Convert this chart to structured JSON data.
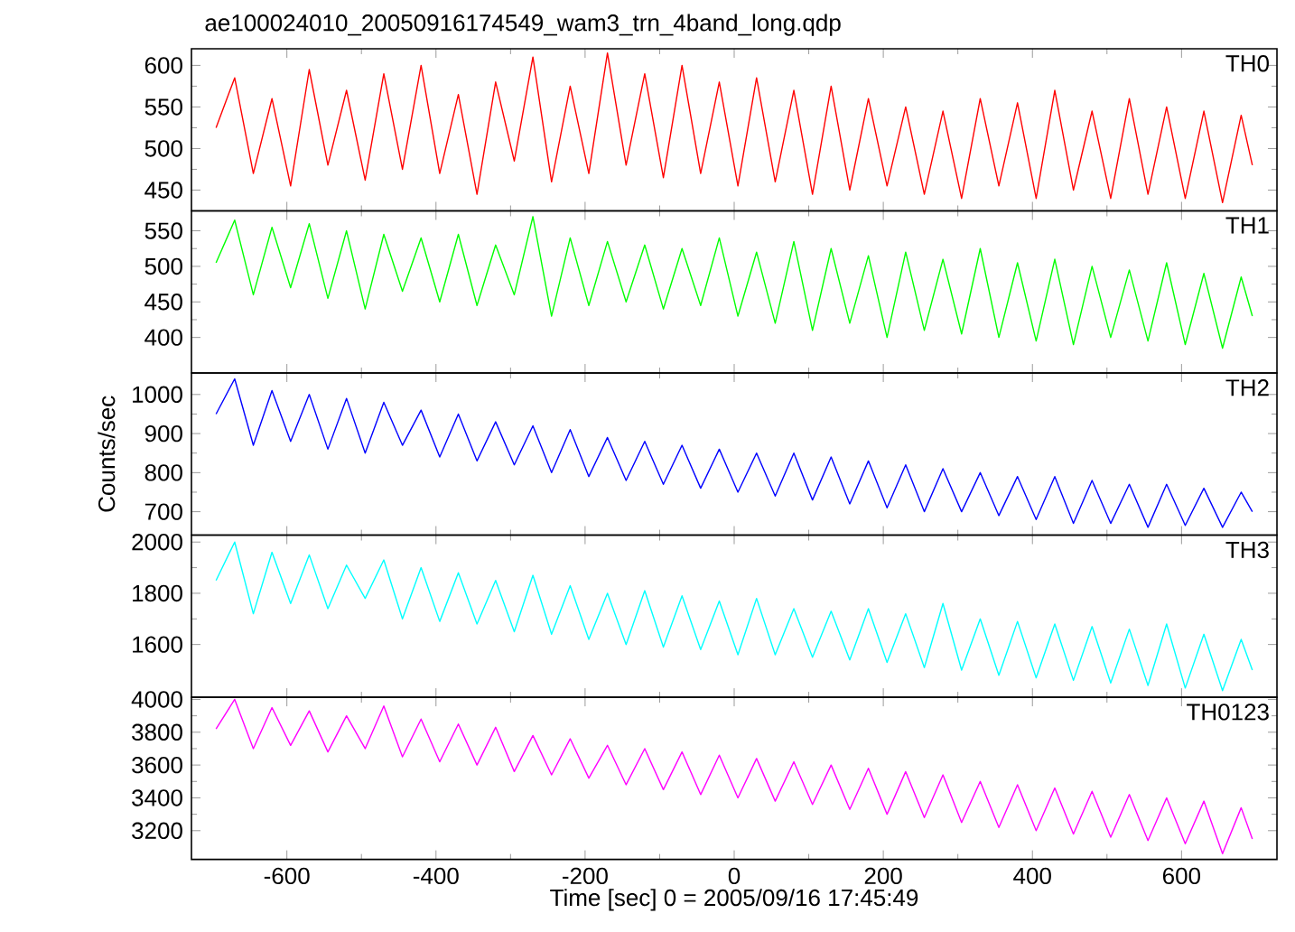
{
  "chart_data": [
    {
      "type": "line",
      "title": "ae100024010_20050916174549_wam3_trn_4band_long.qdp",
      "tick_labels": "y",
      "xlim": [
        -728,
        728
      ],
      "ylim": [
        425,
        620
      ],
      "yticks": [
        450,
        500,
        550,
        600
      ],
      "xticks": [
        -600,
        -400,
        -200,
        0,
        200,
        400,
        600
      ],
      "x": [
        -695,
        -670,
        -645,
        -620,
        -595,
        -570,
        -545,
        -520,
        -495,
        -470,
        -445,
        -420,
        -395,
        -370,
        -345,
        -320,
        -295,
        -270,
        -245,
        -220,
        -195,
        -170,
        -145,
        -120,
        -95,
        -70,
        -45,
        -20,
        5,
        30,
        55,
        80,
        105,
        130,
        155,
        180,
        205,
        230,
        255,
        280,
        305,
        330,
        355,
        380,
        405,
        430,
        455,
        480,
        505,
        530,
        555,
        580,
        605,
        630,
        655,
        680,
        695
      ],
      "series": [
        {
          "name": "TH0",
          "color": "#ff0000",
          "values": [
            525,
            585,
            470,
            560,
            455,
            595,
            480,
            570,
            462,
            590,
            475,
            600,
            470,
            565,
            445,
            580,
            485,
            610,
            460,
            575,
            470,
            615,
            480,
            590,
            465,
            600,
            470,
            580,
            455,
            585,
            460,
            570,
            445,
            575,
            450,
            560,
            455,
            550,
            445,
            545,
            440,
            560,
            455,
            555,
            440,
            570,
            450,
            545,
            440,
            560,
            445,
            550,
            440,
            545,
            435,
            540,
            480
          ]
        }
      ]
    },
    {
      "type": "line",
      "tick_labels": "y",
      "xlim": [
        -728,
        728
      ],
      "ylim": [
        350,
        578
      ],
      "yticks": [
        400,
        450,
        500,
        550
      ],
      "xticks": [
        -600,
        -400,
        -200,
        0,
        200,
        400,
        600
      ],
      "x": [
        -695,
        -670,
        -645,
        -620,
        -595,
        -570,
        -545,
        -520,
        -495,
        -470,
        -445,
        -420,
        -395,
        -370,
        -345,
        -320,
        -295,
        -270,
        -245,
        -220,
        -195,
        -170,
        -145,
        -120,
        -95,
        -70,
        -45,
        -20,
        5,
        30,
        55,
        80,
        105,
        130,
        155,
        180,
        205,
        230,
        255,
        280,
        305,
        330,
        355,
        380,
        405,
        430,
        455,
        480,
        505,
        530,
        555,
        580,
        605,
        630,
        655,
        680,
        695
      ],
      "series": [
        {
          "name": "TH1",
          "color": "#00ff00",
          "values": [
            505,
            565,
            460,
            555,
            470,
            560,
            455,
            550,
            440,
            545,
            465,
            540,
            450,
            545,
            445,
            530,
            460,
            570,
            430,
            540,
            445,
            535,
            450,
            530,
            440,
            525,
            445,
            540,
            430,
            520,
            420,
            535,
            410,
            525,
            420,
            515,
            400,
            520,
            410,
            510,
            405,
            525,
            400,
            505,
            395,
            510,
            390,
            500,
            400,
            495,
            395,
            505,
            390,
            490,
            385,
            485,
            430
          ]
        }
      ]
    },
    {
      "type": "line",
      "ylabel": "Counts/sec",
      "tick_labels": "y",
      "xlim": [
        -728,
        728
      ],
      "ylim": [
        640,
        1055
      ],
      "yticks": [
        700,
        800,
        900,
        1000
      ],
      "xticks": [
        -600,
        -400,
        -200,
        0,
        200,
        400,
        600
      ],
      "x": [
        -695,
        -670,
        -645,
        -620,
        -595,
        -570,
        -545,
        -520,
        -495,
        -470,
        -445,
        -420,
        -395,
        -370,
        -345,
        -320,
        -295,
        -270,
        -245,
        -220,
        -195,
        -170,
        -145,
        -120,
        -95,
        -70,
        -45,
        -20,
        5,
        30,
        55,
        80,
        105,
        130,
        155,
        180,
        205,
        230,
        255,
        280,
        305,
        330,
        355,
        380,
        405,
        430,
        455,
        480,
        505,
        530,
        555,
        580,
        605,
        630,
        655,
        680,
        695
      ],
      "series": [
        {
          "name": "TH2",
          "color": "#0000ff",
          "values": [
            950,
            1040,
            870,
            1010,
            880,
            1000,
            860,
            990,
            850,
            980,
            870,
            960,
            840,
            950,
            830,
            930,
            820,
            920,
            800,
            910,
            790,
            890,
            780,
            880,
            770,
            870,
            760,
            860,
            750,
            850,
            740,
            850,
            730,
            840,
            720,
            830,
            710,
            820,
            700,
            810,
            700,
            800,
            690,
            790,
            680,
            790,
            670,
            780,
            670,
            770,
            660,
            770,
            665,
            760,
            660,
            750,
            700
          ]
        }
      ]
    },
    {
      "type": "line",
      "tick_labels": "y",
      "xlim": [
        -728,
        728
      ],
      "ylim": [
        1394,
        2027
      ],
      "yticks": [
        1600,
        1800,
        2000
      ],
      "xticks": [
        -600,
        -400,
        -200,
        0,
        200,
        400,
        600
      ],
      "x": [
        -695,
        -670,
        -645,
        -620,
        -595,
        -570,
        -545,
        -520,
        -495,
        -470,
        -445,
        -420,
        -395,
        -370,
        -345,
        -320,
        -295,
        -270,
        -245,
        -220,
        -195,
        -170,
        -145,
        -120,
        -95,
        -70,
        -45,
        -20,
        5,
        30,
        55,
        80,
        105,
        130,
        155,
        180,
        205,
        230,
        255,
        280,
        305,
        330,
        355,
        380,
        405,
        430,
        455,
        480,
        505,
        530,
        555,
        580,
        605,
        630,
        655,
        680,
        695
      ],
      "series": [
        {
          "name": "TH3",
          "color": "#00ffff",
          "values": [
            1850,
            2000,
            1720,
            1960,
            1760,
            1950,
            1740,
            1910,
            1780,
            1930,
            1700,
            1900,
            1690,
            1880,
            1680,
            1850,
            1650,
            1870,
            1640,
            1830,
            1620,
            1800,
            1600,
            1810,
            1590,
            1790,
            1580,
            1770,
            1560,
            1780,
            1560,
            1740,
            1550,
            1730,
            1540,
            1740,
            1530,
            1720,
            1510,
            1760,
            1500,
            1700,
            1480,
            1690,
            1470,
            1680,
            1460,
            1670,
            1450,
            1660,
            1440,
            1680,
            1430,
            1640,
            1420,
            1620,
            1500
          ]
        }
      ]
    },
    {
      "type": "line",
      "xlabel": "Time [sec] 0 = 2005/09/16 17:45:49",
      "xlim": [
        -728,
        728
      ],
      "ylim": [
        3025,
        4013
      ],
      "yticks": [
        3200,
        3400,
        3600,
        3800,
        4000
      ],
      "xticks": [
        -600,
        -400,
        -200,
        0,
        200,
        400,
        600
      ],
      "x": [
        -695,
        -670,
        -645,
        -620,
        -595,
        -570,
        -545,
        -520,
        -495,
        -470,
        -445,
        -420,
        -395,
        -370,
        -345,
        -320,
        -295,
        -270,
        -245,
        -220,
        -195,
        -170,
        -145,
        -120,
        -95,
        -70,
        -45,
        -20,
        5,
        30,
        55,
        80,
        105,
        130,
        155,
        180,
        205,
        230,
        255,
        280,
        305,
        330,
        355,
        380,
        405,
        430,
        455,
        480,
        505,
        530,
        555,
        580,
        605,
        630,
        655,
        680,
        695
      ],
      "series": [
        {
          "name": "TH0123",
          "color": "#ff00ff",
          "values": [
            3820,
            4000,
            3700,
            3950,
            3720,
            3930,
            3680,
            3900,
            3700,
            3960,
            3650,
            3880,
            3620,
            3850,
            3600,
            3830,
            3560,
            3780,
            3540,
            3760,
            3520,
            3720,
            3480,
            3700,
            3450,
            3680,
            3420,
            3660,
            3400,
            3640,
            3380,
            3620,
            3360,
            3600,
            3330,
            3580,
            3300,
            3560,
            3280,
            3540,
            3250,
            3500,
            3220,
            3480,
            3200,
            3460,
            3180,
            3440,
            3160,
            3420,
            3140,
            3400,
            3120,
            3380,
            3060,
            3340,
            3150
          ]
        }
      ]
    }
  ]
}
